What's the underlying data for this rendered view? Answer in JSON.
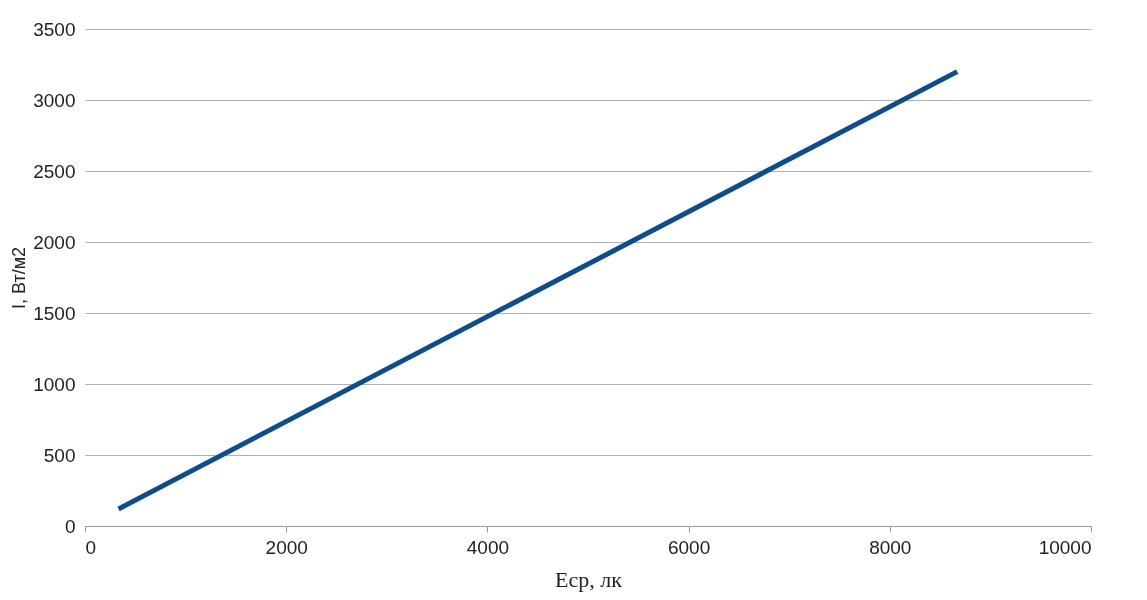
{
  "chart_data": {
    "type": "line",
    "xlabel": "Еср, лк",
    "ylabel": "I, Вт/м2",
    "x": [
      333,
      8670
    ],
    "series": [
      {
        "color": "#0e4c8a",
        "values": [
          120,
          3200
        ]
      }
    ],
    "xlim": [
      0,
      10000
    ],
    "xticks": [
      0,
      2000,
      4000,
      6000,
      8000,
      10000
    ],
    "ylim": [
      0,
      3500
    ],
    "yticks": [
      0,
      500,
      1000,
      1500,
      2000,
      2500,
      3000,
      3500
    ],
    "grid": "y",
    "marker": "none",
    "line_style": "solid",
    "legend": false
  }
}
